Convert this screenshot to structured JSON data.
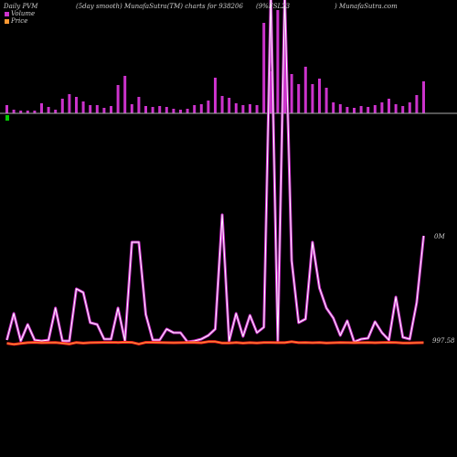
{
  "header": {
    "left": "Daily PVM",
    "smooth": "(5day smooth) MunafaSutra(TM) charts for 938206",
    "code": "(9%FSL23",
    "right": ") MunafaSutra.com"
  },
  "legend": [
    {
      "label": "Volume",
      "color": "#cc33cc"
    },
    {
      "label": "Price",
      "color": "#ff9933"
    }
  ],
  "colors": {
    "volume_bars": "#cc33cc",
    "pvm_outer": "#cc33cc",
    "pvm_inner": "#ffffff",
    "price_outer": "#ff2222",
    "price_inner": "#ff9933",
    "baseline": "#aaaaaa",
    "marker": "#00cc00",
    "background": "#000000"
  },
  "chart_data": {
    "type": "line",
    "series": [
      {
        "name": "Volume",
        "type": "bar",
        "values": [
          9,
          4,
          3,
          3,
          3,
          11,
          7,
          4,
          16,
          21,
          18,
          13,
          9,
          9,
          6,
          8,
          31,
          41,
          10,
          18,
          8,
          7,
          8,
          7,
          5,
          4,
          5,
          9,
          10,
          14,
          39,
          19,
          17,
          11,
          9,
          10,
          9,
          99,
          46,
          113,
          102,
          43,
          32,
          51,
          32,
          38,
          28,
          12,
          10,
          7,
          6,
          8,
          7,
          9,
          12,
          16,
          10,
          8,
          12,
          20,
          35
        ]
      },
      {
        "name": "Price",
        "values": [
          0.3,
          -0.6,
          0.2,
          0.9,
          1.2,
          0.8,
          0.9,
          1.0,
          0.4,
          -0.3,
          1.1,
          0.5,
          0.9,
          1.1,
          1.2,
          1.2,
          1.1,
          1.3,
          1.2,
          -0.3,
          1.2,
          1.2,
          1.1,
          0.9,
          0.8,
          0.9,
          1.0,
          1.0,
          0.8,
          1.8,
          1.8,
          0.6,
          0.6,
          1.0,
          0.5,
          0.9,
          0.6,
          1.0,
          1.1,
          0.9,
          0.9,
          1.8,
          0.9,
          1.0,
          0.8,
          1.1,
          0.6,
          0.8,
          1.1,
          0.9,
          0.8,
          0.9,
          1.0,
          0.8,
          1.1,
          1.2,
          1.1,
          0.7,
          0.6,
          0.8,
          0.9
        ]
      },
      {
        "name": "PVM",
        "values": [
          3,
          32,
          2,
          20,
          3,
          2,
          3,
          38,
          2,
          2,
          59,
          55,
          22,
          20,
          4,
          4,
          38,
          2,
          110,
          110,
          31,
          3,
          3,
          15,
          11,
          11,
          1,
          2,
          4,
          8,
          15,
          140,
          2,
          32,
          7,
          30,
          11,
          17,
          1500,
          2,
          1200,
          90,
          22,
          26,
          110,
          60,
          38,
          27,
          8,
          24,
          1,
          4,
          5,
          23,
          11,
          3,
          50,
          6,
          4,
          44,
          117
        ]
      }
    ],
    "y_labels": {
      "top": "0M",
      "bottom": "997.58"
    }
  }
}
